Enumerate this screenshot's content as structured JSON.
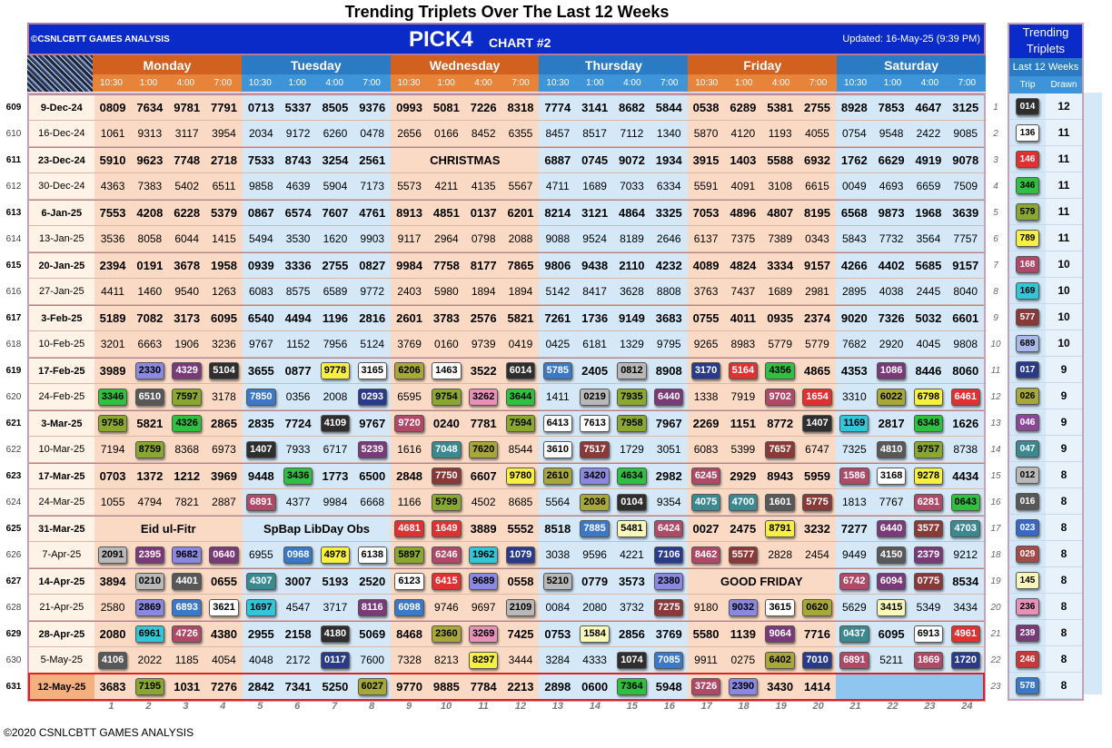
{
  "title": "Trending Triplets Over The Last 12 Weeks",
  "brand": "©CSNLCBTT GAMES ANALYSIS",
  "main_title": "PICK4",
  "chart_no": "CHART #2",
  "updated": "Updated: 16-May-25 (9:39 PM)",
  "copyright": "©2020 CSNLCBTT GAMES ANALYSIS",
  "days": [
    "Monday",
    "Tuesday",
    "Wednesday",
    "Thursday",
    "Friday",
    "Saturday"
  ],
  "times": [
    "10:30",
    "1:00",
    "4:00",
    "7:00"
  ],
  "column_numbers": [
    "1",
    "2",
    "3",
    "4",
    "5",
    "6",
    "7",
    "8",
    "9",
    "10",
    "11",
    "12",
    "13",
    "14",
    "15",
    "16",
    "17",
    "18",
    "19",
    "20",
    "21",
    "22",
    "23",
    "24"
  ],
  "trending": {
    "title": "Trending Triplets",
    "subtitle": "Last 12 Weeks",
    "col_trip": "Trip",
    "col_drawn": "Drawn",
    "items": [
      {
        "rank": "1",
        "trip": "014",
        "drawn": "12",
        "color": "#2e2e2e",
        "fg": "#ffffff"
      },
      {
        "rank": "2",
        "trip": "136",
        "drawn": "11",
        "color": "#ffffff",
        "fg": "#000000"
      },
      {
        "rank": "3",
        "trip": "146",
        "drawn": "11",
        "color": "#e03030",
        "fg": "#ffffff"
      },
      {
        "rank": "4",
        "trip": "346",
        "drawn": "11",
        "color": "#30c040",
        "fg": "#000000"
      },
      {
        "rank": "5",
        "trip": "579",
        "drawn": "11",
        "color": "#8aa830",
        "fg": "#000000"
      },
      {
        "rank": "6",
        "trip": "789",
        "drawn": "11",
        "color": "#f8f040",
        "fg": "#000000"
      },
      {
        "rank": "7",
        "trip": "168",
        "drawn": "10",
        "color": "#b04868",
        "fg": "#ffffff"
      },
      {
        "rank": "8",
        "trip": "169",
        "drawn": "10",
        "color": "#30c8d8",
        "fg": "#000000"
      },
      {
        "rank": "9",
        "trip": "577",
        "drawn": "10",
        "color": "#8a3838",
        "fg": "#ffffff"
      },
      {
        "rank": "10",
        "trip": "689",
        "drawn": "10",
        "color": "#a8b8e8",
        "fg": "#000000"
      },
      {
        "rank": "11",
        "trip": "017",
        "drawn": "9",
        "color": "#2a3a8a",
        "fg": "#ffffff"
      },
      {
        "rank": "12",
        "trip": "026",
        "drawn": "9",
        "color": "#a8a838",
        "fg": "#000000"
      },
      {
        "rank": "13",
        "trip": "046",
        "drawn": "9",
        "color": "#8a4898",
        "fg": "#ffffff"
      },
      {
        "rank": "14",
        "trip": "047",
        "drawn": "9",
        "color": "#3a8890",
        "fg": "#ffffff"
      },
      {
        "rank": "15",
        "trip": "012",
        "drawn": "8",
        "color": "#b8b8b8",
        "fg": "#000000"
      },
      {
        "rank": "16",
        "trip": "016",
        "drawn": "8",
        "color": "#585858",
        "fg": "#ffffff"
      },
      {
        "rank": "17",
        "trip": "023",
        "drawn": "8",
        "color": "#3a68c8",
        "fg": "#ffffff"
      },
      {
        "rank": "18",
        "trip": "029",
        "drawn": "8",
        "color": "#a84848",
        "fg": "#ffffff"
      },
      {
        "rank": "19",
        "trip": "145",
        "drawn": "8",
        "color": "#f8f8b8",
        "fg": "#000000"
      },
      {
        "rank": "20",
        "trip": "236",
        "drawn": "8",
        "color": "#e890b8",
        "fg": "#000000"
      },
      {
        "rank": "21",
        "trip": "239",
        "drawn": "8",
        "color": "#7a3a7a",
        "fg": "#ffffff"
      },
      {
        "rank": "22",
        "trip": "246",
        "drawn": "8",
        "color": "#c83838",
        "fg": "#ffffff"
      },
      {
        "rank": "23",
        "trip": "578",
        "drawn": "8",
        "color": "#3a78c8",
        "fg": "#ffffff"
      }
    ]
  },
  "highlight_colors": {
    "plain": null,
    "white": [
      "#ffffff",
      "#000000"
    ],
    "purple": [
      "#8a88e0",
      "#000000"
    ],
    "darkpurple": [
      "#7a3a7a",
      "#ffffff"
    ],
    "black": [
      "#2e2e2e",
      "#ffffff"
    ],
    "yellow": [
      "#f8f040",
      "#000000"
    ],
    "green": [
      "#30c040",
      "#000000"
    ],
    "gray": [
      "#b8b8b8",
      "#000000"
    ],
    "darkgray": [
      "#585858",
      "#ffffff"
    ],
    "blue": [
      "#3a78c8",
      "#ffffff"
    ],
    "red": [
      "#e03030",
      "#ffffff"
    ],
    "darkred": [
      "#8a3838",
      "#ffffff"
    ],
    "olive": [
      "#a8a838",
      "#000000"
    ],
    "olivegreen": [
      "#8aa830",
      "#000000"
    ],
    "teal": [
      "#3a8890",
      "#ffffff"
    ],
    "cyan": [
      "#30c8d8",
      "#000000"
    ],
    "pink": [
      "#e890b8",
      "#000000"
    ],
    "navy": [
      "#2a3a8a",
      "#ffffff"
    ],
    "mauve": [
      "#b04868",
      "#ffffff"
    ],
    "cream": [
      "#f8f8b8",
      "#000000"
    ]
  },
  "rows": [
    {
      "num": "609",
      "date": "9-Dec-24",
      "major": true,
      "cells": [
        "0809",
        "7634",
        "9781",
        "7791",
        "0713",
        "5337",
        "8505",
        "9376",
        "0993",
        "5081",
        "7226",
        "8318",
        "7774",
        "3141",
        "8682",
        "5844",
        "0538",
        "6289",
        "5381",
        "2755",
        "8928",
        "7853",
        "4647",
        "3125"
      ]
    },
    {
      "num": "610",
      "date": "16-Dec-24",
      "major": false,
      "cells": [
        "1061",
        "9313",
        "3117",
        "3954",
        "2034",
        "9172",
        "6260",
        "0478",
        "2656",
        "0166",
        "8452",
        "6355",
        "8457",
        "8517",
        "7112",
        "1340",
        "5870",
        "4120",
        "1193",
        "4055",
        "0754",
        "9548",
        "2422",
        "9085"
      ]
    },
    {
      "num": "611",
      "date": "23-Dec-24",
      "major": true,
      "cells": [
        "5910",
        "9623",
        "7748",
        "2718",
        "7533",
        "8743",
        "3254",
        "2561",
        "CHRISTMAS",
        "",
        "",
        "",
        "6887",
        "0745",
        "9072",
        "1934",
        "3915",
        "1403",
        "5588",
        "6932",
        "1762",
        "6629",
        "4919",
        "9078"
      ],
      "spans": [
        8
      ]
    },
    {
      "num": "612",
      "date": "30-Dec-24",
      "major": false,
      "cells": [
        "4363",
        "7383",
        "5402",
        "6511",
        "9858",
        "4639",
        "5904",
        "7173",
        "5573",
        "4211",
        "4135",
        "5567",
        "4711",
        "1689",
        "7033",
        "6334",
        "5591",
        "4091",
        "3108",
        "6615",
        "0049",
        "4693",
        "6659",
        "7509"
      ]
    },
    {
      "num": "613",
      "date": "6-Jan-25",
      "major": true,
      "cells": [
        "7553",
        "4208",
        "6228",
        "5379",
        "0867",
        "6574",
        "7607",
        "4761",
        "8913",
        "4851",
        "0137",
        "6201",
        "8214",
        "3121",
        "4864",
        "3325",
        "7053",
        "4896",
        "4807",
        "8195",
        "6568",
        "9873",
        "1968",
        "3639"
      ]
    },
    {
      "num": "614",
      "date": "13-Jan-25",
      "major": false,
      "cells": [
        "3536",
        "8058",
        "6044",
        "1415",
        "5494",
        "3530",
        "1620",
        "9903",
        "9117",
        "2964",
        "0798",
        "2088",
        "9088",
        "9524",
        "8189",
        "2646",
        "6137",
        "7375",
        "7389",
        "0343",
        "5843",
        "7732",
        "3564",
        "7757"
      ]
    },
    {
      "num": "615",
      "date": "20-Jan-25",
      "major": true,
      "cells": [
        "2394",
        "0191",
        "3678",
        "1958",
        "0939",
        "3336",
        "2755",
        "0827",
        "9984",
        "7758",
        "8177",
        "7865",
        "9806",
        "9438",
        "2110",
        "4232",
        "4089",
        "4824",
        "3334",
        "9157",
        "4266",
        "4402",
        "5685",
        "9157"
      ]
    },
    {
      "num": "616",
      "date": "27-Jan-25",
      "major": false,
      "cells": [
        "4411",
        "1460",
        "9540",
        "1263",
        "6083",
        "8575",
        "6589",
        "9772",
        "2403",
        "5980",
        "1894",
        "1894",
        "5142",
        "8417",
        "3628",
        "8808",
        "3763",
        "7437",
        "1689",
        "2981",
        "2895",
        "4038",
        "2445",
        "8040"
      ]
    },
    {
      "num": "617",
      "date": "3-Feb-25",
      "major": true,
      "cells": [
        "5189",
        "7082",
        "3173",
        "6095",
        "6540",
        "4494",
        "1196",
        "2816",
        "2601",
        "3783",
        "2576",
        "5821",
        "7261",
        "1736",
        "9149",
        "3683",
        "0755",
        "4011",
        "0935",
        "2374",
        "9020",
        "7326",
        "5032",
        "6601"
      ]
    },
    {
      "num": "618",
      "date": "10-Feb-25",
      "major": false,
      "cells": [
        "3201",
        "6663",
        "1906",
        "3236",
        "9767",
        "1152",
        "7956",
        "5124",
        "3769",
        "0160",
        "9739",
        "0419",
        "0425",
        "6181",
        "1329",
        "9795",
        "9265",
        "8983",
        "5779",
        "5779",
        "7682",
        "2920",
        "4045",
        "9808"
      ]
    },
    {
      "num": "619",
      "date": "17-Feb-25",
      "major": true,
      "cells": [
        "3989",
        "2330|purple",
        "4329|darkpurple",
        "5104|black",
        "3655",
        "0877",
        "9778|yellow",
        "3165|white",
        "6206|olive",
        "1463|white",
        "3522",
        "6014|black",
        "5785|blue",
        "2405",
        "0812|gray",
        "8908",
        "3170|navy",
        "5164|red",
        "4356|green",
        "4865",
        "4353",
        "1086|darkpurple",
        "8446",
        "8060"
      ]
    },
    {
      "num": "620",
      "date": "24-Feb-25",
      "major": false,
      "cells": [
        "3346|green",
        "6510|darkgray",
        "7597|olivegreen",
        "3178",
        "7850|blue",
        "0356",
        "2008",
        "0293|navy",
        "6595",
        "9754|olivegreen",
        "3262|pink",
        "3644|green",
        "1411",
        "0219|gray",
        "7935|olivegreen",
        "6440|darkpurple",
        "1338",
        "7919",
        "9702|mauve",
        "1654|red",
        "3310",
        "6022|olive",
        "6798|yellow",
        "6461|red"
      ]
    },
    {
      "num": "621",
      "date": "3-Mar-25",
      "major": true,
      "cells": [
        "9758|olivegreen",
        "5821",
        "4326|green",
        "2865",
        "2835",
        "7724",
        "4109|black",
        "9767",
        "9720|mauve",
        "0240",
        "7781",
        "7594|olivegreen",
        "6413|white",
        "7613|white",
        "7958|olivegreen",
        "7967",
        "2269",
        "1151",
        "8772",
        "1407|black",
        "1169|cyan",
        "2817",
        "6348|green",
        "1626"
      ]
    },
    {
      "num": "622",
      "date": "10-Mar-25",
      "major": false,
      "cells": [
        "7194",
        "8759|olivegreen",
        "8368",
        "6973",
        "1407|black",
        "7933",
        "6717",
        "5239|darkpurple",
        "1616",
        "7048|teal",
        "7620|olive",
        "8544",
        "3610|white",
        "7517|darkred",
        "1729",
        "3051",
        "6083",
        "5399",
        "7657|darkred",
        "6747",
        "7325",
        "4810|darkgray",
        "9757|olivegreen",
        "8738"
      ]
    },
    {
      "num": "623",
      "date": "17-Mar-25",
      "major": true,
      "cells": [
        "0703",
        "1372",
        "1212",
        "3969",
        "9448",
        "3436|green",
        "1773",
        "6500",
        "2848",
        "7750|darkred",
        "6607",
        "9780|yellow",
        "2610|olive",
        "3420|purple",
        "4634|green",
        "2982",
        "6245|mauve",
        "2929",
        "8943",
        "5959",
        "1586|mauve",
        "3168|white",
        "9278|yellow",
        "4434"
      ]
    },
    {
      "num": "624",
      "date": "24-Mar-25",
      "major": false,
      "cells": [
        "1055",
        "4794",
        "7821",
        "2887",
        "6891|mauve",
        "4377",
        "9984",
        "6668",
        "1166",
        "5799|olivegreen",
        "4502",
        "8685",
        "5564",
        "2036|olive",
        "0104|black",
        "9354",
        "4075|teal",
        "4700|teal",
        "1601|darkgray",
        "5775|darkred",
        "1813",
        "7767",
        "6281|mauve",
        "0643|green"
      ]
    },
    {
      "num": "625",
      "date": "31-Mar-25",
      "major": true,
      "cells": [
        "Eid ul-Fitr",
        "",
        "",
        "",
        "SpBap LibDay Obs",
        "",
        "",
        "",
        "4681|red",
        "1649|red",
        "3889",
        "5552",
        "8518",
        "7885|blue",
        "5481|cream",
        "6424|mauve",
        "0027",
        "2475",
        "8791|yellow",
        "3232",
        "7277",
        "6440|darkpurple",
        "3577|darkred",
        "4703|teal"
      ],
      "spans": [
        0,
        4
      ]
    },
    {
      "num": "626",
      "date": "7-Apr-25",
      "major": false,
      "cells": [
        "2091|gray",
        "2395|darkpurple",
        "9682|purple",
        "0640|darkpurple",
        "6955",
        "0968|blue",
        "4978|yellow",
        "6138|white",
        "5897|olivegreen",
        "6246|mauve",
        "1962|cyan",
        "1079|navy",
        "3038",
        "9596",
        "4221",
        "7106|navy",
        "8462|mauve",
        "5577|darkred",
        "2828",
        "2454",
        "9449",
        "4150|darkgray",
        "2379|darkpurple",
        "9212"
      ]
    },
    {
      "num": "627",
      "date": "14-Apr-25",
      "major": true,
      "cells": [
        "3894",
        "0210|gray",
        "4401|darkgray",
        "0655",
        "4307|teal",
        "3007",
        "5193",
        "2520",
        "6123|white",
        "6415|red",
        "9689|purple",
        "0558",
        "5210|gray",
        "0779",
        "3573",
        "2380|purple",
        "GOOD FRIDAY",
        "",
        "",
        "",
        "6742|mauve",
        "6094|darkpurple",
        "0775|darkred",
        "8534"
      ],
      "spans": [
        16
      ]
    },
    {
      "num": "628",
      "date": "21-Apr-25",
      "major": false,
      "cells": [
        "2580",
        "2869|purple",
        "6893|blue",
        "3621|white",
        "1697|cyan",
        "4547",
        "3717",
        "8116|darkpurple",
        "6098|blue",
        "9746",
        "9697",
        "2109|gray",
        "0084",
        "2080",
        "3732",
        "7275|darkred",
        "9180",
        "9032|purple",
        "3615|white",
        "0620|olive",
        "5629",
        "3415|cream",
        "5349",
        "3434"
      ]
    },
    {
      "num": "629",
      "date": "28-Apr-25",
      "major": true,
      "cells": [
        "2080",
        "6961|cyan",
        "4726|mauve",
        "4380",
        "2955",
        "2158",
        "4180|black",
        "5069",
        "8468",
        "2360|olive",
        "3269|pink",
        "7425",
        "0753",
        "1584|cream",
        "2856",
        "3769",
        "5580",
        "1139",
        "9064|darkpurple",
        "7716",
        "0437|teal",
        "6095",
        "6913|white",
        "4961|red"
      ]
    },
    {
      "num": "630",
      "date": "5-May-25",
      "major": false,
      "cells": [
        "4106|darkgray",
        "2022",
        "1185",
        "4054",
        "4048",
        "2172",
        "0117|navy",
        "7600",
        "7328",
        "8213",
        "8297|yellow",
        "3444",
        "3284",
        "4333",
        "1074|black",
        "7085|blue",
        "9911",
        "0275",
        "6402|olive",
        "7010|navy",
        "6891|mauve",
        "5211",
        "1869|mauve",
        "1720|navy"
      ]
    },
    {
      "num": "631",
      "date": "12-May-25",
      "major": true,
      "current": true,
      "cells": [
        "3683",
        "7195|olivegreen",
        "1031",
        "7276",
        "2842",
        "7341",
        "5250",
        "6027|olive",
        "9770",
        "9885",
        "7784",
        "2213",
        "2898",
        "0600",
        "7364|green",
        "5948",
        "3726|mauve",
        "2390|purple",
        "3430",
        "1414",
        "",
        "",
        "",
        ""
      ]
    }
  ]
}
